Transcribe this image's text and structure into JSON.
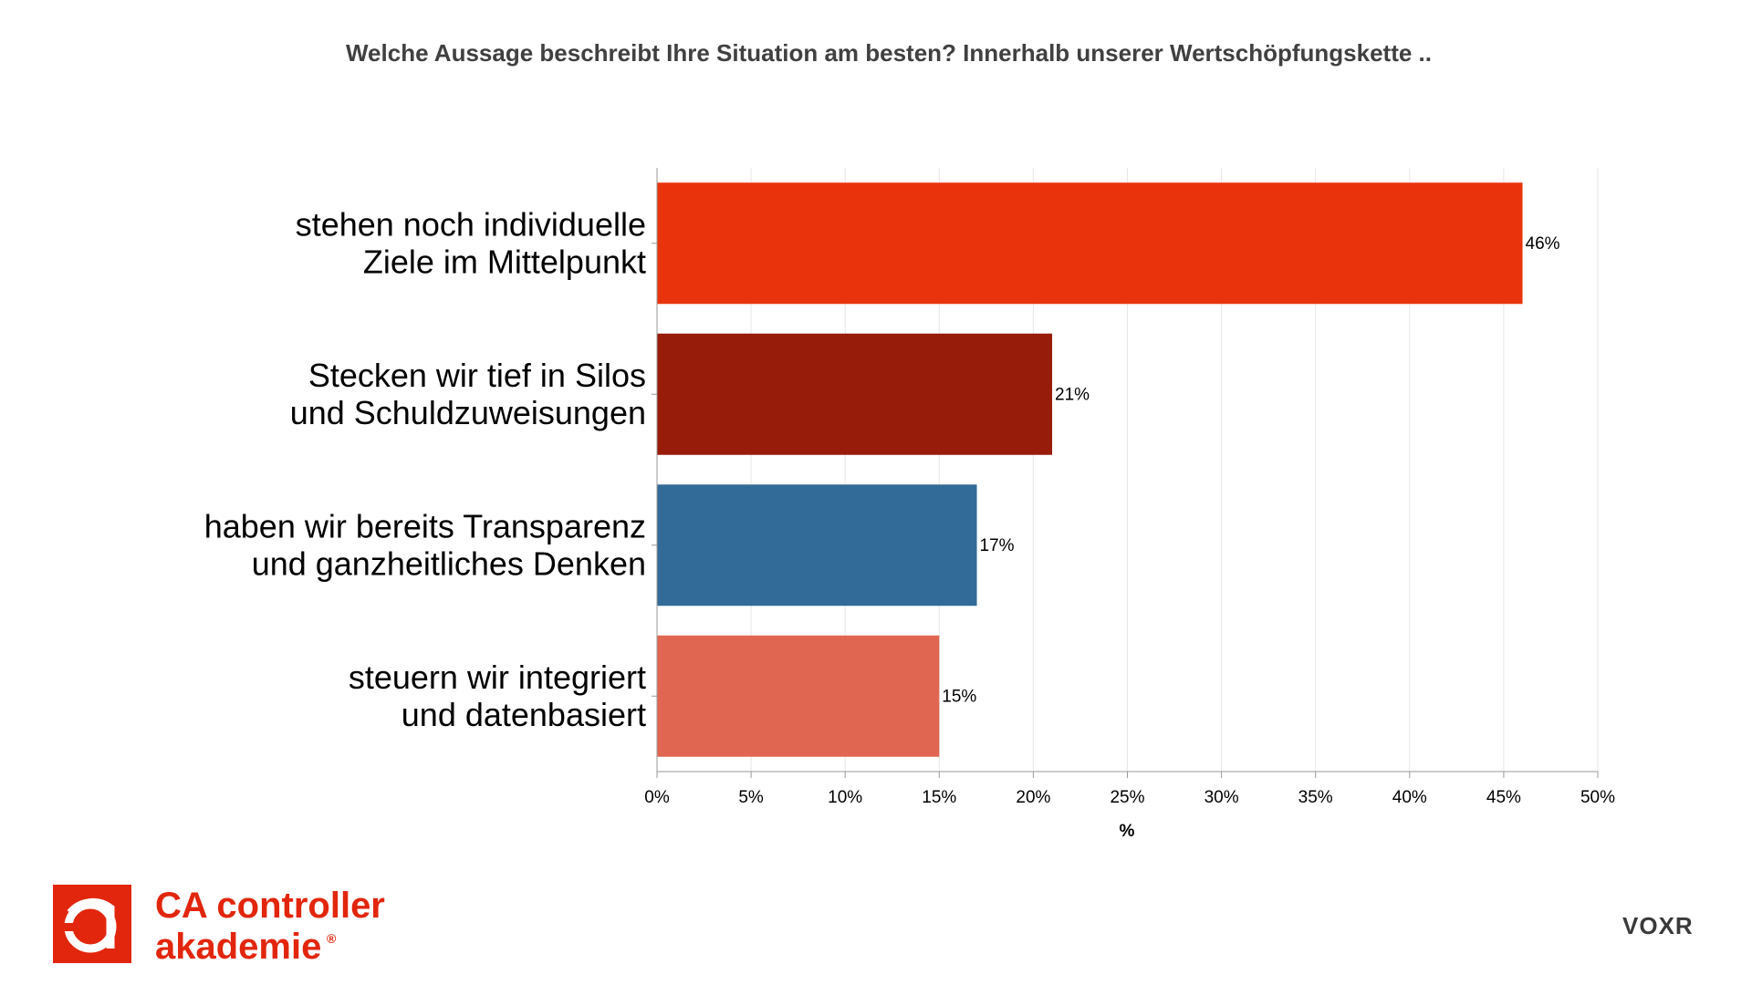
{
  "chart_data": {
    "type": "bar",
    "orientation": "horizontal",
    "title": "Welche Aussage beschreibt Ihre Situation am besten? Innerhalb unserer Wertschöpfungskette ..",
    "categories": [
      [
        "stehen noch individuelle",
        "Ziele im Mittelpunkt"
      ],
      [
        "Stecken wir tief in Silos",
        "und Schuldzuweisungen"
      ],
      [
        "haben wir bereits Transparenz",
        "und ganzheitliches Denken"
      ],
      [
        "steuern wir integriert",
        "und datenbasiert"
      ]
    ],
    "values": [
      46,
      21,
      17,
      15
    ],
    "value_labels": [
      "46%",
      "21%",
      "17%",
      "15%"
    ],
    "colors": [
      "#E9330D",
      "#981C0A",
      "#336B98",
      "#E16651"
    ],
    "xlim": [
      0,
      50
    ],
    "xticks": [
      0,
      5,
      10,
      15,
      20,
      25,
      30,
      35,
      40,
      45,
      50
    ],
    "xtick_labels": [
      "0%",
      "5%",
      "10%",
      "15%",
      "20%",
      "25%",
      "30%",
      "35%",
      "40%",
      "45%",
      "50%"
    ],
    "xlabel": "%",
    "grid": "vertical"
  },
  "branding": {
    "logo_line1": "CA controller",
    "logo_line2": "akademie",
    "logo_registered": "®",
    "logo_color": "#E2260D",
    "provider_logo": "VOXR",
    "provider_color": "#3A3A3A",
    "provider_accent": "#E2260D"
  }
}
